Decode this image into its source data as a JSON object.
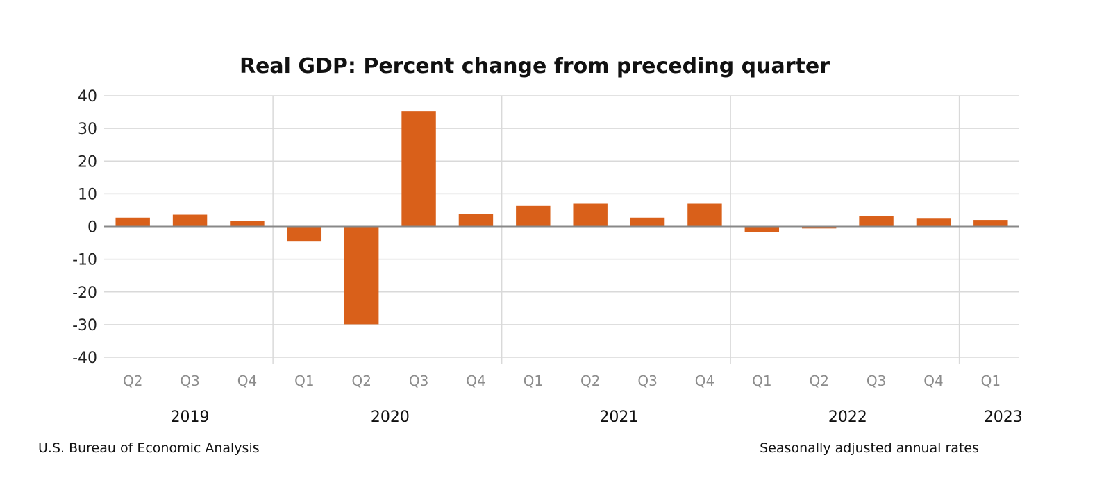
{
  "chart_data": {
    "type": "bar",
    "title": "Real GDP:  Percent change from preceding quarter",
    "categories": [
      "Q2",
      "Q3",
      "Q4",
      "Q1",
      "Q2",
      "Q3",
      "Q4",
      "Q1",
      "Q2",
      "Q3",
      "Q4",
      "Q1",
      "Q2",
      "Q3",
      "Q4",
      "Q1"
    ],
    "years": [
      {
        "label": "2019",
        "start": 0,
        "end": 3
      },
      {
        "label": "2020",
        "start": 3,
        "end": 7
      },
      {
        "label": "2021",
        "start": 7,
        "end": 11
      },
      {
        "label": "2022",
        "start": 11,
        "end": 15
      },
      {
        "label": "2023",
        "start": 15,
        "end": 16
      }
    ],
    "values": [
      2.7,
      3.6,
      1.8,
      -4.6,
      -29.9,
      35.3,
      3.9,
      6.3,
      7.0,
      2.7,
      7.0,
      -1.6,
      -0.6,
      3.2,
      2.6,
      2.0
    ],
    "ylim": [
      -40,
      40
    ],
    "yticks": [
      40,
      30,
      20,
      10,
      0,
      -10,
      -20,
      -30,
      -40
    ],
    "grid": true,
    "bar_color": "#d9601a",
    "source": "U.S. Bureau of Economic Analysis",
    "note": "Seasonally adjusted annual rates"
  }
}
